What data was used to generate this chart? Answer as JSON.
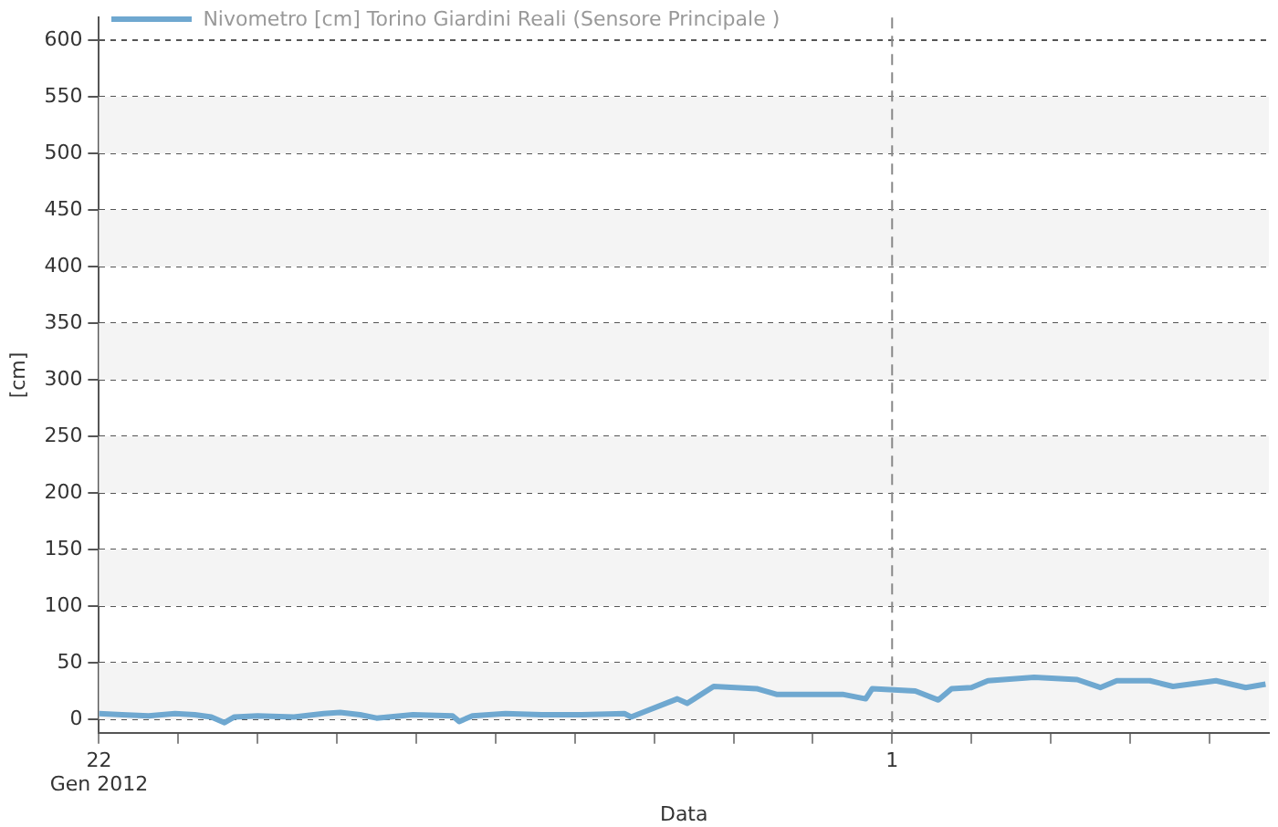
{
  "chart_data": {
    "type": "line",
    "xlabel": "Data",
    "ylabel": "[cm]",
    "legend": "top left",
    "grid": "y",
    "line_style": "solid",
    "marker": "none",
    "x": [
      "2012-01-22T00:00",
      "2012-01-22T07:00",
      "2012-01-22T15:00",
      "2012-01-22T23:00",
      "2012-01-23T05:00",
      "2012-01-23T10:00",
      "2012-01-23T14:00",
      "2012-01-23T17:00",
      "2012-01-24T00:00",
      "2012-01-24T11:00",
      "2012-01-24T20:00",
      "2012-01-25T01:00",
      "2012-01-25T07:00",
      "2012-01-25T12:00",
      "2012-01-25T23:00",
      "2012-01-26T11:00",
      "2012-01-26T13:00",
      "2012-01-26T17:00",
      "2012-01-27T03:00",
      "2012-01-27T14:00",
      "2012-01-28T02:00",
      "2012-01-28T15:00",
      "2012-01-28T17:00",
      "2012-01-29T07:00",
      "2012-01-29T10:00",
      "2012-01-29T18:00",
      "2012-01-30T07:00",
      "2012-01-30T13:00",
      "2012-01-31T09:00",
      "2012-01-31T16:00",
      "2012-01-31T18:00",
      "2012-02-01T07:00",
      "2012-02-01T14:00",
      "2012-02-01T18:00",
      "2012-02-02T00:00",
      "2012-02-02T05:00",
      "2012-02-02T19:00",
      "2012-02-03T08:00",
      "2012-02-03T15:00",
      "2012-02-03T20:00",
      "2012-02-04T06:00",
      "2012-02-04T13:00",
      "2012-02-05T02:00",
      "2012-02-05T11:00",
      "2012-02-05T17:00"
    ],
    "series": [
      {
        "name": "Nivometro [cm] Torino Giardini Reali  (Sensore Principale )",
        "color": "#6fa8d0",
        "values": [
          5,
          4,
          3,
          5,
          4,
          2,
          -3,
          2,
          3,
          2,
          5,
          6,
          4,
          1,
          4,
          3,
          -2,
          3,
          5,
          4,
          4,
          5,
          2,
          18,
          14,
          29,
          27,
          22,
          22,
          18,
          27,
          25,
          17,
          27,
          28,
          34,
          37,
          35,
          28,
          34,
          34,
          29,
          34,
          28,
          31
        ]
      }
    ],
    "xlim": [
      "2012-01-22T00:00",
      "2012-02-05T18:00"
    ],
    "xticks": [
      {
        "value": "2012-01-22",
        "label": "22\nGen 2012"
      },
      {
        "value": "2012-01-23",
        "label": null
      },
      {
        "value": "2012-01-24",
        "label": null
      },
      {
        "value": "2012-01-25",
        "label": null
      },
      {
        "value": "2012-01-26",
        "label": null
      },
      {
        "value": "2012-01-27",
        "label": null
      },
      {
        "value": "2012-01-28",
        "label": null
      },
      {
        "value": "2012-01-29",
        "label": null
      },
      {
        "value": "2012-01-30",
        "label": null
      },
      {
        "value": "2012-01-31",
        "label": null
      },
      {
        "value": "2012-02-01",
        "label": "1"
      },
      {
        "value": "2012-02-02",
        "label": null
      },
      {
        "value": "2012-02-03",
        "label": null
      },
      {
        "value": "2012-02-04",
        "label": null
      },
      {
        "value": "2012-02-05",
        "label": null
      }
    ],
    "ylim": [
      -12,
      620
    ],
    "yticks": [
      0,
      50,
      100,
      150,
      200,
      250,
      300,
      350,
      400,
      450,
      500,
      550,
      600
    ],
    "ref_lines": [
      {
        "axis": "x",
        "value": "2012-02-01",
        "color": "#888888",
        "line_style": "dashed"
      }
    ]
  }
}
